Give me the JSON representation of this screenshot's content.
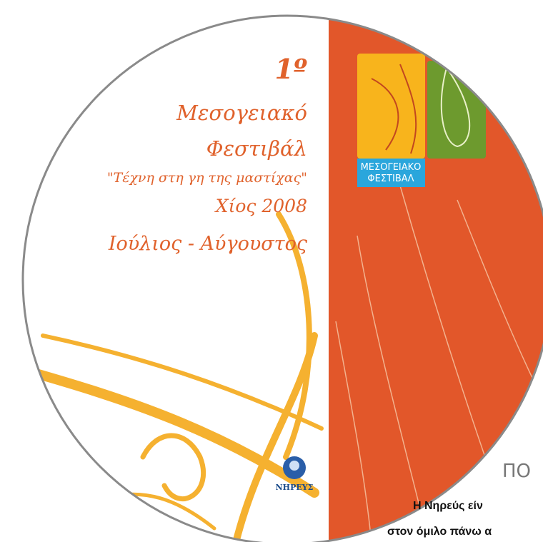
{
  "festival": {
    "edition": "1º",
    "lines": [
      "Μεσογειακό",
      "Φεστιβάλ",
      "\"Τέχνη στη γη της μαστίχας\"",
      "Χίος 2008",
      "Ιούλιος - Αύγουστος"
    ]
  },
  "logo": {
    "label_lines": [
      "ΜΕΣΟΓΕΙΑΚΟ",
      "ΦΕΣΤΙΒΑΛ"
    ]
  },
  "sponsor": "ΝΗΡΕΥΣ",
  "article": {
    "heading": "ΠΟ",
    "lines": [
      "Η Νηρεύς είν",
      "στον όμιλο πάνω α"
    ]
  }
}
